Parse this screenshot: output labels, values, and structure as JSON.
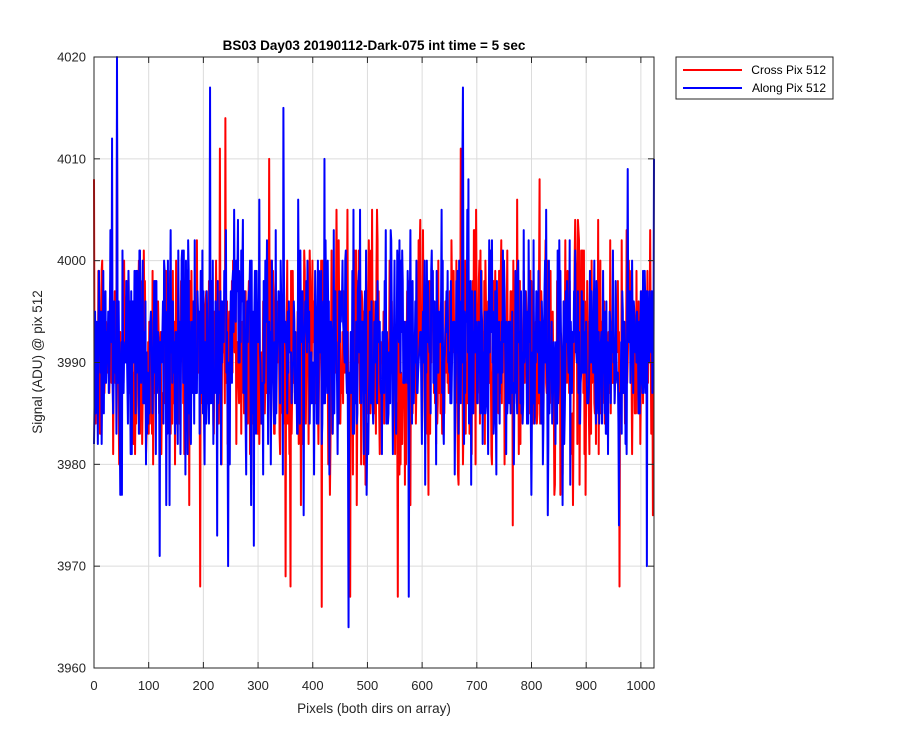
{
  "chart_data": {
    "type": "line",
    "title": "BS03 Day03 20190112-Dark-075 int time = 5 sec",
    "xlabel": "Pixels (both dirs on array)",
    "ylabel": "Signal (ADU) @ pix 512",
    "xlim": [
      0,
      1024
    ],
    "ylim": [
      3960,
      4020
    ],
    "xticks": [
      0,
      100,
      200,
      300,
      400,
      500,
      600,
      700,
      800,
      900,
      1000
    ],
    "yticks": [
      3960,
      3970,
      3980,
      3990,
      4000,
      4010,
      4020
    ],
    "grid": true,
    "legend_position": "outside-top-right",
    "series": [
      {
        "name": "Cross Pix 512",
        "color": "#ff0000",
        "noise_summary": {
          "count": 1024,
          "mean": 3991,
          "std": 6,
          "min": 3966,
          "max": 4014
        },
        "extremes": [
          [
            42,
            4014
          ],
          [
            240,
            4014
          ],
          [
            230,
            4011
          ],
          [
            416,
            3966
          ],
          [
            468,
            3967
          ],
          [
            555,
            3967
          ],
          [
            960,
            3968
          ],
          [
            350,
            3969
          ],
          [
            670,
            4011
          ],
          [
            320,
            4010
          ]
        ]
      },
      {
        "name": "Along Pix 512",
        "color": "#0000ff",
        "noise_summary": {
          "count": 1024,
          "mean": 3991,
          "std": 6,
          "min": 3964,
          "max": 4020
        },
        "extremes": [
          [
            42,
            4020
          ],
          [
            212,
            4017
          ],
          [
            674,
            4017
          ],
          [
            465,
            3964
          ],
          [
            575,
            3967
          ],
          [
            120,
            3971
          ],
          [
            245,
            3970
          ],
          [
            1010,
            3970
          ],
          [
            1024,
            4010
          ],
          [
            975,
            4009
          ]
        ]
      }
    ]
  }
}
